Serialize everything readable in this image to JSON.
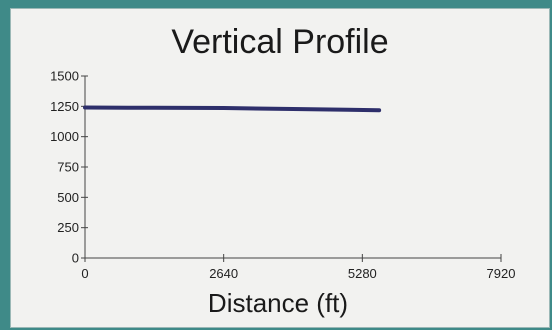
{
  "chart_data": {
    "type": "line",
    "title": "Vertical Profile",
    "xlabel": "Distance (ft)",
    "ylabel": "",
    "xlim": [
      0,
      7920
    ],
    "ylim": [
      0,
      1500
    ],
    "x_ticks": [
      0,
      2640,
      5280,
      7920
    ],
    "y_ticks": [
      0,
      250,
      500,
      750,
      1000,
      1250,
      1500
    ],
    "grid": false,
    "series": [
      {
        "x": [
          0,
          1320,
          2640,
          3960,
          5000,
          5600
        ],
        "y": [
          1240,
          1238,
          1236,
          1228,
          1222,
          1218
        ],
        "color": "#2e2f6b"
      }
    ]
  }
}
